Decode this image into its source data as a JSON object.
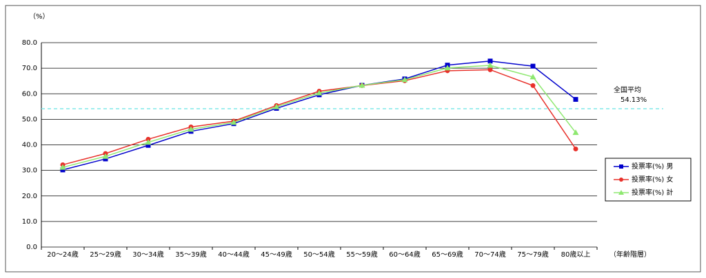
{
  "chart_data": {
    "type": "line",
    "y_label": "（%）",
    "x_label": "（年齢階層）",
    "categories": [
      "20～24歳",
      "25～29歳",
      "30～34歳",
      "35～39歳",
      "40～44歳",
      "45～49歳",
      "50～54歳",
      "55～59歳",
      "60～64歳",
      "65～69歳",
      "70～74歳",
      "75～79歳",
      "80歳以上"
    ],
    "series": [
      {
        "name": "投票率(%) 男",
        "color": "#0000cc",
        "marker": "square",
        "values": [
          30.2,
          34.5,
          39.8,
          45.3,
          48.3,
          54.3,
          59.6,
          63.3,
          65.8,
          71.2,
          72.8,
          70.8,
          57.8
        ]
      },
      {
        "name": "投票率(%) 女",
        "color": "#e8302a",
        "marker": "circle",
        "values": [
          32.2,
          36.6,
          42.2,
          47.0,
          49.3,
          55.4,
          61.0,
          63.2,
          65.1,
          69.0,
          69.4,
          63.2,
          38.4
        ]
      },
      {
        "name": "投票率(%) 計",
        "color": "#8ee870",
        "marker": "triangle",
        "values": [
          31.2,
          35.5,
          41.0,
          46.1,
          48.8,
          54.9,
          60.3,
          63.3,
          65.5,
          70.1,
          71.1,
          66.6,
          44.8
        ]
      }
    ],
    "average": {
      "name": "全国平均",
      "value": 54.13,
      "label": "54.13%",
      "color": "#7fe8e8"
    },
    "ylim": [
      0,
      80
    ],
    "yticks": [
      {
        "value": 0,
        "label": "0.0"
      },
      {
        "value": 10,
        "label": "10.0"
      },
      {
        "value": 20,
        "label": "20.0"
      },
      {
        "value": 30,
        "label": "30.0"
      },
      {
        "value": 40,
        "label": "40.0"
      },
      {
        "value": 50,
        "label": "50.0"
      },
      {
        "value": 60,
        "label": "60.0"
      },
      {
        "value": 70,
        "label": "70.0"
      },
      {
        "value": 80,
        "label": "80.0"
      }
    ],
    "grid": true,
    "legend": "right"
  }
}
